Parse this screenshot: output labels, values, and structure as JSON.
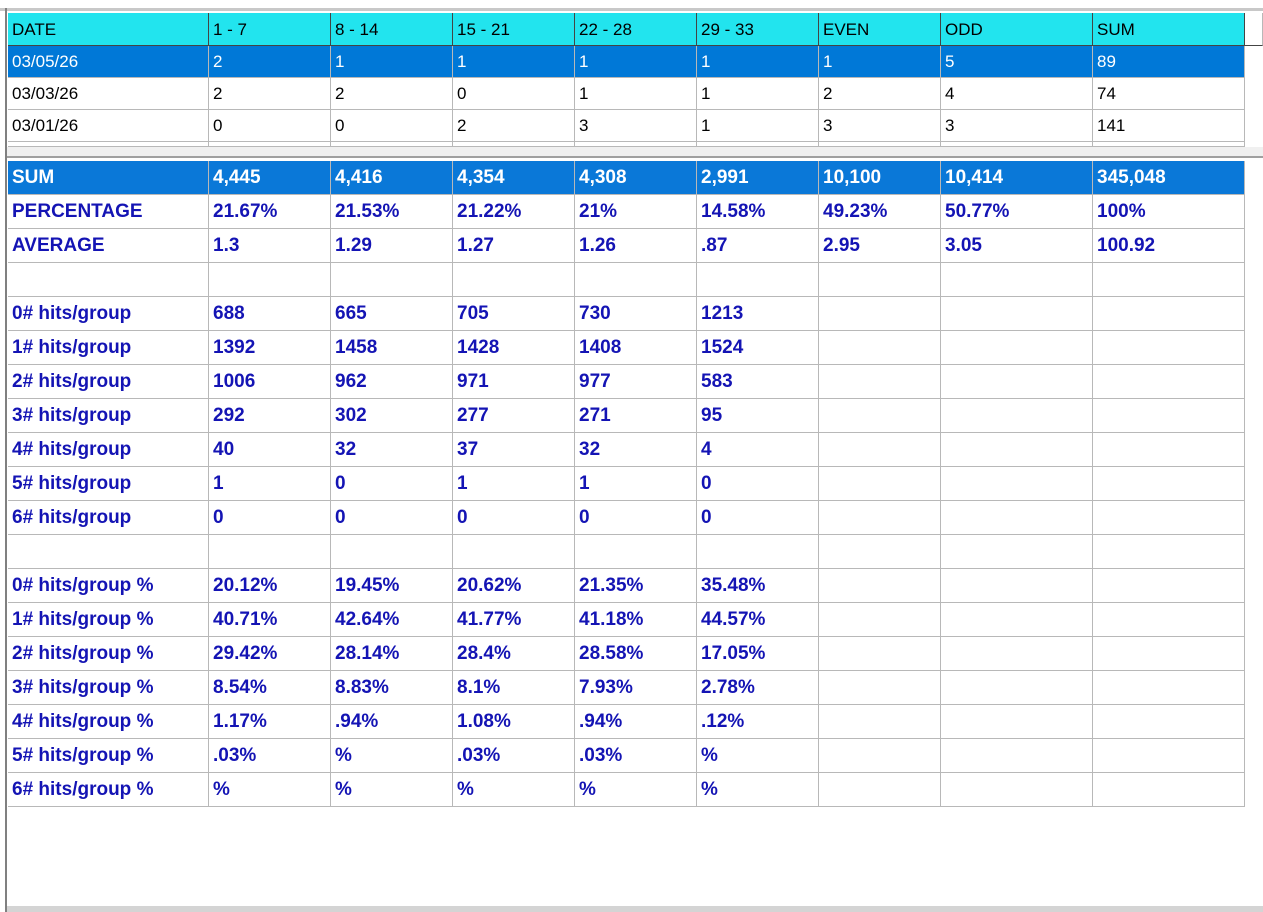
{
  "top_table": {
    "headers": [
      "DATE",
      "1 - 7",
      "8 - 14",
      "15 - 21",
      "22 - 28",
      "29 - 33",
      "EVEN",
      "ODD",
      "SUM"
    ],
    "rows": [
      [
        "03/05/26",
        "2",
        "1",
        "1",
        "1",
        "1",
        "1",
        "5",
        "89"
      ],
      [
        "03/03/26",
        "2",
        "2",
        "0",
        "1",
        "1",
        "2",
        "4",
        "74"
      ],
      [
        "03/01/26",
        "0",
        "0",
        "2",
        "3",
        "1",
        "3",
        "3",
        "141"
      ]
    ]
  },
  "bottom_table": {
    "rows": [
      [
        "SUM",
        "4,445",
        "4,416",
        "4,354",
        "4,308",
        "2,991",
        "10,100",
        "10,414",
        "345,048"
      ],
      [
        "PERCENTAGE",
        "21.67%",
        "21.53%",
        "21.22%",
        "21%",
        "14.58%",
        "49.23%",
        "50.77%",
        "100%"
      ],
      [
        "AVERAGE",
        "1.3",
        "1.29",
        "1.27",
        "1.26",
        ".87",
        "2.95",
        "3.05",
        "100.92"
      ],
      null,
      [
        "0# hits/group",
        "688",
        "665",
        "705",
        "730",
        "1213"
      ],
      [
        "1# hits/group",
        "1392",
        "1458",
        "1428",
        "1408",
        "1524"
      ],
      [
        "2# hits/group",
        "1006",
        "962",
        "971",
        "977",
        "583"
      ],
      [
        "3# hits/group",
        "292",
        "302",
        "277",
        "271",
        "95"
      ],
      [
        "4# hits/group",
        "40",
        "32",
        "37",
        "32",
        "4"
      ],
      [
        "5# hits/group",
        "1",
        "0",
        "1",
        "1",
        "0"
      ],
      [
        "6# hits/group",
        "0",
        "0",
        "0",
        "0",
        "0"
      ],
      null,
      [
        "0# hits/group %",
        "20.12%",
        "19.45%",
        "20.62%",
        "21.35%",
        "35.48%"
      ],
      [
        "1# hits/group %",
        "40.71%",
        "42.64%",
        "41.77%",
        "41.18%",
        "44.57%"
      ],
      [
        "2# hits/group %",
        "29.42%",
        "28.14%",
        "28.4%",
        "28.58%",
        "17.05%"
      ],
      [
        "3# hits/group %",
        "8.54%",
        "8.83%",
        "8.1%",
        "7.93%",
        "2.78%"
      ],
      [
        "4# hits/group %",
        "1.17%",
        ".94%",
        "1.08%",
        ".94%",
        ".12%"
      ],
      [
        "5# hits/group %",
        ".03%",
        "%",
        ".03%",
        ".03%",
        "%"
      ],
      [
        "6# hits/group %",
        "%",
        "%",
        "%",
        "%",
        "%"
      ]
    ]
  }
}
